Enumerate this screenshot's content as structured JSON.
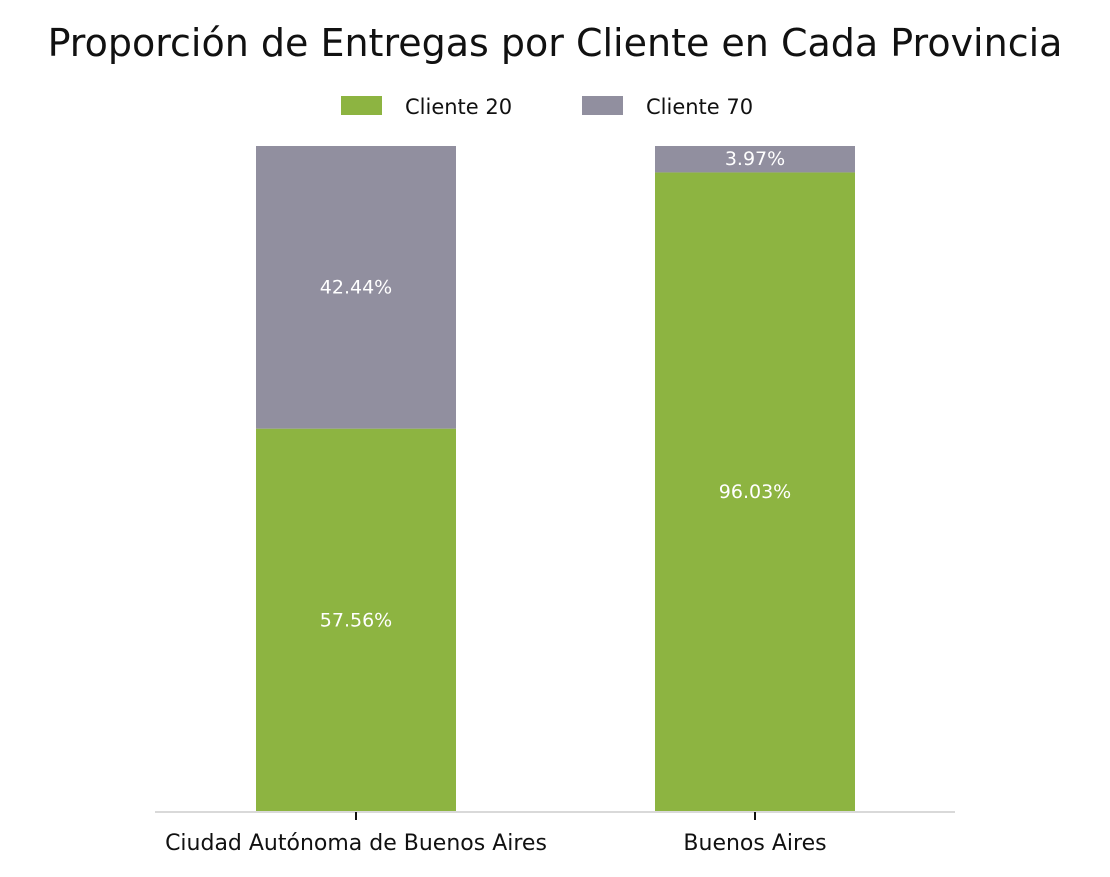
{
  "chart_data": {
    "type": "bar",
    "stacked": true,
    "percent": true,
    "title": "Proporción de Entregas por Cliente en Cada Provincia",
    "xlabel": "",
    "ylabel": "",
    "categories": [
      "Ciudad Autónoma de Buenos Aires",
      "Buenos Aires"
    ],
    "series": [
      {
        "name": "Cliente 20",
        "color": "#8db441",
        "values": [
          57.56,
          96.03
        ],
        "labels": [
          "57.56%",
          "96.03%"
        ]
      },
      {
        "name": "Cliente 70",
        "color": "#918f9f",
        "values": [
          42.44,
          3.97
        ],
        "labels": [
          "42.44%",
          "3.97%"
        ]
      }
    ],
    "ylim": [
      0,
      100
    ],
    "legend_position": "top-center",
    "grid": false,
    "y_axis_visible": false
  }
}
